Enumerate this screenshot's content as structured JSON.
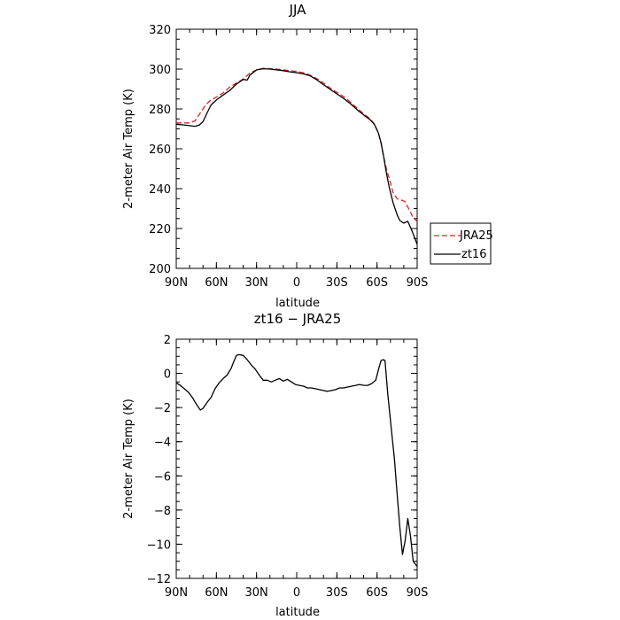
{
  "chart_data": [
    {
      "type": "line",
      "title": "JJA",
      "xlabel": "latitude",
      "ylabel": "2-meter Air Temp (K)",
      "xlim": [
        90,
        -90
      ],
      "ylim": [
        200,
        320
      ],
      "x_ticks": [
        {
          "value": 90,
          "label": "90N"
        },
        {
          "value": 60,
          "label": "60N"
        },
        {
          "value": 30,
          "label": "30N"
        },
        {
          "value": 0,
          "label": "0"
        },
        {
          "value": -30,
          "label": "30S"
        },
        {
          "value": -60,
          "label": "60S"
        },
        {
          "value": -90,
          "label": "90S"
        }
      ],
      "y_ticks": [
        200,
        220,
        240,
        260,
        280,
        300,
        320
      ],
      "legend_position": "right-bottom, outside",
      "series": [
        {
          "name": "JRA25",
          "color": "#e02020",
          "dash": "dashed",
          "x": [
            90,
            85,
            80,
            76,
            72,
            68,
            65,
            60,
            55,
            50,
            45,
            40,
            35,
            30,
            25,
            20,
            15,
            10,
            5,
            0,
            -5,
            -10,
            -15,
            -20,
            -25,
            -30,
            -35,
            -40,
            -45,
            -50,
            -55,
            -58,
            -61,
            -63,
            -65,
            -67,
            -70,
            -72,
            -75,
            -78,
            -81,
            -84,
            -87,
            -90
          ],
          "y": [
            273,
            273,
            273,
            274,
            278,
            282,
            284,
            286,
            288,
            291,
            293,
            295,
            298,
            299.6,
            300.4,
            300.2,
            300,
            299.6,
            299.2,
            298.8,
            298.2,
            297,
            295.2,
            293,
            290.5,
            288.3,
            286.2,
            283.5,
            280.5,
            277.5,
            275,
            272.5,
            268,
            263,
            256,
            250,
            243,
            238,
            235,
            234.3,
            233.5,
            229.5,
            225.5,
            223.5
          ]
        },
        {
          "name": "zt16",
          "color": "#000000",
          "dash": "solid",
          "x": [
            90,
            85,
            80,
            76,
            73,
            70,
            67,
            64,
            60,
            55,
            50,
            45,
            40,
            37,
            35,
            30,
            25,
            20,
            15,
            10,
            5,
            0,
            -5,
            -10,
            -15,
            -20,
            -25,
            -30,
            -35,
            -40,
            -45,
            -50,
            -55,
            -58,
            -61,
            -63,
            -65,
            -67,
            -69,
            -72,
            -75,
            -77,
            -80,
            -83,
            -86,
            -90
          ],
          "y": [
            272.3,
            272,
            271.6,
            271.3,
            271.8,
            273.6,
            278,
            282,
            284.5,
            287,
            289.3,
            292.5,
            294.8,
            294.5,
            297,
            299.6,
            300.2,
            300,
            299.6,
            299.2,
            298.6,
            298.2,
            297.6,
            296.6,
            294.6,
            292.2,
            289.8,
            287.6,
            285.3,
            282.7,
            279.7,
            277,
            274.5,
            272.3,
            268,
            263,
            256,
            248,
            241,
            233,
            227,
            224,
            222.7,
            223.6,
            219,
            212
          ]
        }
      ]
    },
    {
      "type": "line",
      "title": "zt16 − JRA25",
      "xlabel": "latitude",
      "ylabel": "2-meter Air Temp (K)",
      "xlim": [
        90,
        -90
      ],
      "ylim": [
        -12,
        2
      ],
      "x_ticks": [
        {
          "value": 90,
          "label": "90N"
        },
        {
          "value": 60,
          "label": "60N"
        },
        {
          "value": 30,
          "label": "30N"
        },
        {
          "value": 0,
          "label": "0"
        },
        {
          "value": -30,
          "label": "30S"
        },
        {
          "value": -60,
          "label": "60S"
        },
        {
          "value": -90,
          "label": "90S"
        }
      ],
      "y_ticks": [
        {
          "value": 2,
          "label": "2"
        },
        {
          "value": 0,
          "label": "0"
        },
        {
          "value": -2,
          "label": "−2"
        },
        {
          "value": -4,
          "label": "−4"
        },
        {
          "value": -6,
          "label": "−6"
        },
        {
          "value": -8,
          "label": "−8"
        },
        {
          "value": -10,
          "label": "−10"
        },
        {
          "value": -12,
          "label": "−12"
        }
      ],
      "series": [
        {
          "color": "#000000",
          "dash": "solid",
          "x": [
            90,
            87,
            84,
            81,
            78,
            75,
            72,
            70,
            67,
            64,
            61,
            58,
            55,
            52,
            49,
            47,
            45,
            43,
            40,
            37,
            34,
            31,
            28,
            25,
            22,
            19,
            16,
            13,
            10,
            7,
            4,
            1,
            -2,
            -5,
            -8,
            -11,
            -14,
            -17,
            -20,
            -23,
            -26,
            -29,
            -32,
            -35,
            -38,
            -41,
            -44,
            -47,
            -50,
            -53,
            -56,
            -59,
            -61,
            -63,
            -64.5,
            -66,
            -68,
            -71,
            -73,
            -75,
            -77,
            -79,
            -81,
            -83,
            -85,
            -87,
            -89,
            -90
          ],
          "y": [
            -0.55,
            -0.7,
            -0.9,
            -1.1,
            -1.4,
            -1.8,
            -2.15,
            -2.05,
            -1.7,
            -1.4,
            -0.9,
            -0.55,
            -0.3,
            -0.1,
            0.3,
            0.7,
            1.05,
            1.1,
            1.05,
            0.8,
            0.5,
            0.25,
            -0.1,
            -0.4,
            -0.4,
            -0.5,
            -0.4,
            -0.3,
            -0.45,
            -0.35,
            -0.5,
            -0.65,
            -0.7,
            -0.75,
            -0.85,
            -0.85,
            -0.9,
            -0.95,
            -1.0,
            -1.05,
            -1.0,
            -0.95,
            -0.85,
            -0.85,
            -0.8,
            -0.75,
            -0.7,
            -0.65,
            -0.7,
            -0.7,
            -0.6,
            -0.4,
            0.2,
            0.75,
            0.8,
            0.75,
            -1.2,
            -3.5,
            -5.0,
            -7.0,
            -9.0,
            -10.6,
            -9.8,
            -8.5,
            -9.5,
            -11,
            -11.2,
            -11.3
          ]
        }
      ]
    }
  ]
}
